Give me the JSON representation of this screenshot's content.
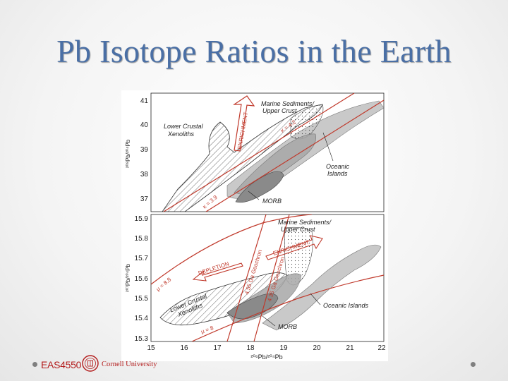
{
  "slide": {
    "title": "Pb Isotope Ratios in the Earth",
    "accent_color": "#4a6fa5"
  },
  "footer": {
    "course_code": "EAS4550",
    "university": "Cornell University",
    "seal_icon": "cornell-seal-icon"
  },
  "figure": {
    "top_panel": {
      "ylabel": "²⁰⁸Pb/²⁰⁴Pb",
      "yticks": [
        "41",
        "40",
        "39",
        "38",
        "37"
      ],
      "labels": {
        "lower_crustal": [
          "Lower Crustal",
          "Xenoliths"
        ],
        "marine": [
          "Marine Sediments/",
          "Upper Crust"
        ],
        "oceanic": [
          "Oceanic",
          "Islands"
        ],
        "morb": "MORB",
        "enrichment": "ENRICHMENT",
        "kappa_42": "κ = 4.2",
        "kappa_39": "κ = 3.9"
      }
    },
    "bottom_panel": {
      "ylabel": "²⁰⁷Pb/²⁰⁴Pb",
      "yticks": [
        "15.9",
        "15.8",
        "15.7",
        "15.6",
        "15.5",
        "15.4",
        "15.3"
      ],
      "xticks": [
        "15",
        "16",
        "17",
        "18",
        "19",
        "20",
        "21",
        "22"
      ],
      "xlabel": "²⁰⁶Pb/²⁰⁴Pb",
      "labels": {
        "lower_crustal": [
          "Lower Crustal",
          "Xenoliths"
        ],
        "marine": [
          "Marine Sediments/",
          "Upper Crust"
        ],
        "oceanic": "Oceanic Islands",
        "morb": "MORB",
        "enrichment": "ENRICHMENT",
        "depletion": "DEPLETION",
        "mu_88": "μ = 8.8",
        "mu_8": "μ = 8",
        "geochron_455": "4.55 Ga Geochron",
        "geochron_435": "4.35 Ga Geochron"
      }
    }
  }
}
